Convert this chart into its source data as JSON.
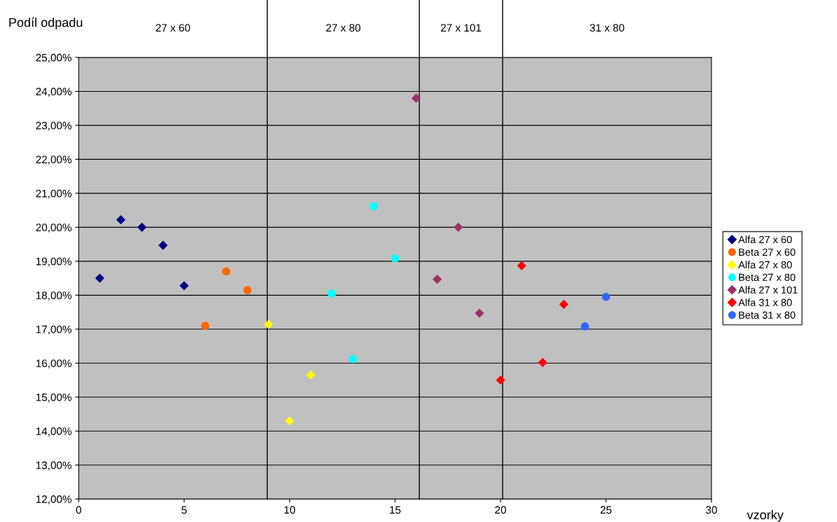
{
  "chart_data": {
    "type": "scatter",
    "ylabel": "Podíl odpadu",
    "xlabel": "vzorky",
    "xlim": [
      0,
      30
    ],
    "xticks": [
      0,
      5,
      10,
      15,
      20,
      25,
      30
    ],
    "ylim": [
      12,
      25
    ],
    "yticks": [
      {
        "value": 12,
        "label": "12,00%"
      },
      {
        "value": 13,
        "label": "13,00%"
      },
      {
        "value": 14,
        "label": "14,00%"
      },
      {
        "value": 15,
        "label": "15,00%"
      },
      {
        "value": 16,
        "label": "16,00%"
      },
      {
        "value": 17,
        "label": "17,00%"
      },
      {
        "value": 18,
        "label": "18,00%"
      },
      {
        "value": 19,
        "label": "19,00%"
      },
      {
        "value": 20,
        "label": "20,00%"
      },
      {
        "value": 21,
        "label": "21,00%"
      },
      {
        "value": 22,
        "label": "22,00%"
      },
      {
        "value": 23,
        "label": "23,00%"
      },
      {
        "value": 24,
        "label": "24,00%"
      },
      {
        "value": 25,
        "label": "25,00%"
      }
    ],
    "grid": "y",
    "legend": "right",
    "ref_lines": [
      {
        "axis": "x",
        "value": 8.94,
        "color": "#000000"
      },
      {
        "axis": "x",
        "value": 16.15,
        "color": "#000000"
      },
      {
        "axis": "x",
        "value": 20.1,
        "color": "#000000"
      }
    ],
    "annotations": [
      "27 x 60",
      "27 x 80",
      "27 x 101",
      "31 x 80"
    ],
    "series": [
      {
        "name": "Alfa 27 x 60",
        "color": "#000080",
        "marker": "diamond",
        "x": [
          1,
          2,
          3,
          4,
          5
        ],
        "values": [
          18.5,
          20.22,
          20.0,
          19.47,
          18.28
        ]
      },
      {
        "name": "Beta 27 x 60",
        "color": "#ff6600",
        "marker": "circle",
        "x": [
          6,
          7,
          8
        ],
        "values": [
          17.1,
          18.7,
          18.15
        ]
      },
      {
        "name": "Alfa 27 x 80",
        "color": "#ffff00",
        "marker": "diamond",
        "x": [
          9,
          10,
          11
        ],
        "values": [
          17.14,
          14.3,
          15.65
        ]
      },
      {
        "name": "Beta 27 x 80",
        "color": "#00ffff",
        "marker": "circle",
        "x": [
          12,
          13,
          14,
          15
        ],
        "values": [
          18.05,
          16.12,
          20.62,
          19.08
        ]
      },
      {
        "name": "Alfa 27 x 101",
        "color": "#993366",
        "marker": "diamond",
        "x": [
          16,
          17,
          18,
          19
        ],
        "values": [
          23.8,
          18.47,
          20.0,
          17.47
        ]
      },
      {
        "name": "Alfa 31 x 80",
        "color": "#ff0000",
        "marker": "diamond",
        "x": [
          20,
          21,
          22,
          23
        ],
        "values": [
          15.5,
          18.87,
          16.02,
          17.73
        ]
      },
      {
        "name": "Beta 31 x 80",
        "color": "#3366ff",
        "marker": "circle",
        "x": [
          24,
          25
        ],
        "values": [
          17.08,
          17.95
        ]
      }
    ]
  }
}
